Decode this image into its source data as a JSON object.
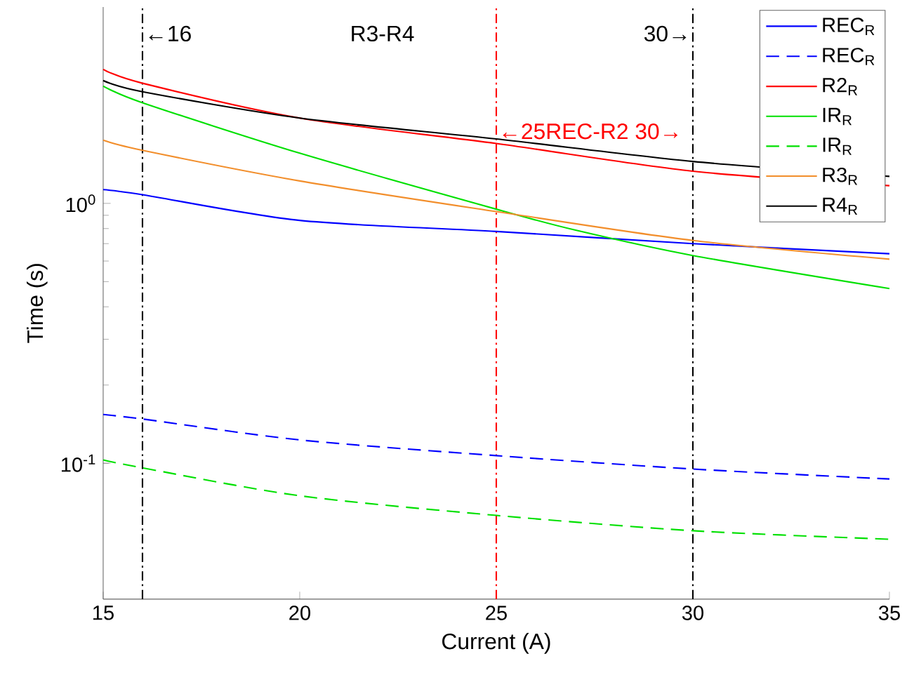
{
  "chart_data": {
    "type": "line",
    "xlabel": "Current (A)",
    "ylabel": "Time (s)",
    "log": "y",
    "x": [
      15,
      16,
      20,
      25,
      30,
      35
    ],
    "xlim": [
      15,
      35
    ],
    "xticks": [
      15,
      20,
      25,
      30,
      35
    ],
    "ylim": [
      0.03,
      5.7
    ],
    "yticks": [
      {
        "value": 0.1,
        "label": "10$^{-1}$"
      },
      {
        "value": 1,
        "label": "10$^{0}$"
      }
    ],
    "legend": "top right",
    "grid": false,
    "series": [
      {
        "name": "REC$_{R}$",
        "color": "#0000ff",
        "line_style": "solid",
        "values": [
          1.13,
          1.08,
          0.86,
          0.78,
          0.7,
          0.64
        ]
      },
      {
        "name": "REC$_{R}$",
        "color": "#0000ff",
        "line_style": "dashed",
        "values": [
          0.154,
          0.148,
          0.123,
          0.107,
          0.095,
          0.087
        ]
      },
      {
        "name": "R2$_{R}$",
        "color": "#ff0000",
        "line_style": "solid",
        "values": [
          3.28,
          2.9,
          2.13,
          1.7,
          1.33,
          1.17
        ]
      },
      {
        "name": "IR$_{R}$",
        "color": "#00e000",
        "line_style": "solid",
        "x": [
          15,
          16,
          20,
          25,
          27,
          30,
          35
        ],
        "values": [
          2.83,
          2.44,
          1.56,
          0.95,
          0.79,
          0.63,
          0.47
        ]
      },
      {
        "name": "IR$_{R}$",
        "color": "#00e000",
        "line_style": "dashed",
        "values": [
          0.103,
          0.096,
          0.075,
          0.063,
          0.055,
          0.051
        ]
      },
      {
        "name": "R3$_{R}$",
        "color": "#f28e2b",
        "line_style": "solid",
        "values": [
          1.75,
          1.6,
          1.22,
          0.93,
          0.72,
          0.61
        ]
      },
      {
        "name": "R4$_{R}$",
        "color": "#000000",
        "line_style": "solid",
        "values": [
          2.97,
          2.69,
          2.13,
          1.77,
          1.45,
          1.27
        ]
      }
    ],
    "ref_lines": [
      {
        "axis": "x",
        "value": 16,
        "label": "←16",
        "color": "#000000",
        "line_style": "dashdot"
      },
      {
        "axis": "x",
        "value": 25,
        "label": "←25REC-R2 30→",
        "color": "#ff0000",
        "line_style": "dashdot"
      },
      {
        "axis": "x",
        "value": 30,
        "label": "30→",
        "color": "#000000",
        "line_style": "dashdot"
      }
    ],
    "annotations": [
      "R3-R4"
    ]
  }
}
